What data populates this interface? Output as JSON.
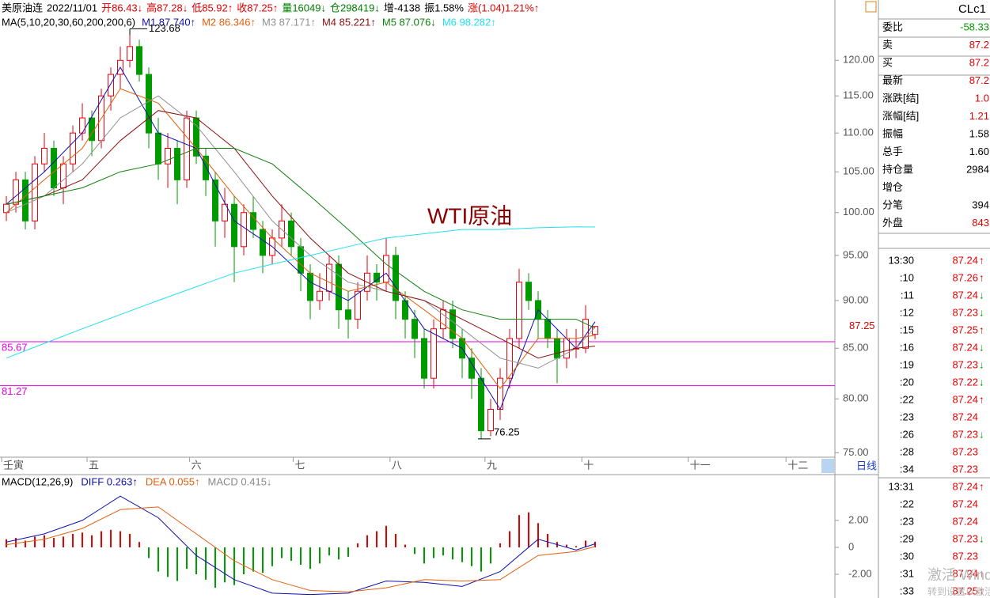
{
  "header": {
    "items": [
      {
        "text": "美原油连",
        "color": "#000000"
      },
      {
        "text": "2022/11/01",
        "color": "#000000"
      },
      {
        "text": "开86.43↓",
        "color": "#e00000"
      },
      {
        "text": "高87.28↓",
        "color": "#e00000"
      },
      {
        "text": "低85.92↑",
        "color": "#e00000"
      },
      {
        "text": "收87.25↑",
        "color": "#e00000"
      },
      {
        "text": "量16049↓",
        "color": "#008000"
      },
      {
        "text": "仓298419↓",
        "color": "#008000"
      },
      {
        "text": "增-4138",
        "color": "#000000"
      },
      {
        "text": "振1.58%",
        "color": "#000000"
      },
      {
        "text": "涨(1.04)1.21%↑",
        "color": "#e00000"
      }
    ]
  },
  "chart_data": [
    {
      "type": "candlestick",
      "ma_title": "MA(5,10,20,30,60,200,200,6)",
      "annotation": "WTI原油",
      "log_scale": true,
      "up_color": "#e8000b",
      "down_color": "#009a00",
      "xlim": [
        -0.67,
        87.25
      ],
      "xticks": [
        {
          "value": -0.5,
          "label": "壬寅"
        },
        {
          "value": 8.5,
          "label": "五"
        },
        {
          "value": 19.3,
          "label": "六"
        },
        {
          "value": 30.2,
          "label": "七"
        },
        {
          "value": 40.4,
          "label": "八"
        },
        {
          "value": 50.4,
          "label": "九"
        },
        {
          "value": 60.6,
          "label": "十"
        },
        {
          "value": 71.8,
          "label": "十一"
        },
        {
          "value": 82.1,
          "label": "十二"
        }
      ],
      "ylim": [
        74.6,
        124.2
      ],
      "yticks": [
        {
          "value": 120,
          "label": "120.00"
        },
        {
          "value": 115,
          "label": "115.00"
        },
        {
          "value": 110,
          "label": "110.00"
        },
        {
          "value": 105,
          "label": "105.00"
        },
        {
          "value": 100,
          "label": "100.00"
        },
        {
          "value": 95,
          "label": "95.00"
        },
        {
          "value": 90,
          "label": "90.00"
        },
        {
          "value": 85,
          "label": "85.00"
        },
        {
          "value": 80,
          "label": "80.00"
        },
        {
          "value": 75,
          "label": "75.00"
        }
      ],
      "hlines": [
        {
          "value": 85.67,
          "color": "#e000e0"
        },
        {
          "value": 81.27,
          "color": "#e000e0"
        }
      ],
      "candles": [
        [
          100,
          102,
          99,
          101
        ],
        [
          101,
          105,
          100,
          104
        ],
        [
          104,
          105,
          98,
          99
        ],
        [
          99,
          107,
          98,
          106
        ],
        [
          106,
          110,
          105,
          108
        ],
        [
          108,
          109,
          102,
          103
        ],
        [
          103,
          107,
          101,
          106
        ],
        [
          106,
          111,
          105,
          110
        ],
        [
          110,
          114,
          109,
          112
        ],
        [
          112,
          113,
          107,
          109
        ],
        [
          109,
          116,
          108,
          115
        ],
        [
          115,
          119,
          113,
          118
        ],
        [
          118,
          122,
          116,
          120
        ],
        [
          120,
          123.68,
          119,
          122
        ],
        [
          122,
          123,
          117,
          118
        ],
        [
          118,
          119,
          108,
          110
        ],
        [
          110,
          112,
          104,
          106
        ],
        [
          106,
          110,
          103,
          108
        ],
        [
          108,
          109,
          101,
          104
        ],
        [
          104,
          113,
          103,
          112
        ],
        [
          112,
          113,
          106,
          107
        ],
        [
          107,
          108,
          102,
          104
        ],
        [
          104,
          105,
          96,
          99
        ],
        [
          99,
          103,
          97,
          101
        ],
        [
          101,
          102,
          92,
          96
        ],
        [
          96,
          101,
          95,
          100
        ],
        [
          100,
          102,
          97,
          98
        ],
        [
          98,
          99,
          93,
          95
        ],
        [
          95,
          98,
          94,
          97
        ],
        [
          97,
          101,
          96,
          99
        ],
        [
          99,
          100,
          95,
          96
        ],
        [
          96,
          97,
          91,
          93
        ],
        [
          93,
          94,
          88,
          90
        ],
        [
          90,
          93,
          89,
          91
        ],
        [
          91,
          95,
          90,
          94
        ],
        [
          94,
          95,
          87,
          89
        ],
        [
          89,
          91,
          86,
          88
        ],
        [
          88,
          92,
          87,
          91
        ],
        [
          91,
          95,
          90,
          93
        ],
        [
          93,
          94,
          90,
          92
        ],
        [
          92,
          97,
          91,
          95
        ],
        [
          95,
          96,
          88,
          90
        ],
        [
          90,
          91,
          86,
          88
        ],
        [
          88,
          89,
          84,
          86
        ],
        [
          86,
          87,
          81,
          82
        ],
        [
          82,
          88,
          81,
          87
        ],
        [
          87,
          90,
          86,
          89
        ],
        [
          89,
          90,
          85,
          86
        ],
        [
          86,
          87,
          82,
          84
        ],
        [
          84,
          85,
          80,
          82
        ],
        [
          82,
          83,
          76.25,
          77
        ],
        [
          77,
          80,
          76.5,
          79
        ],
        [
          79,
          83,
          78,
          82
        ],
        [
          82,
          87,
          81,
          86
        ],
        [
          86,
          93.5,
          85,
          92
        ],
        [
          92,
          93,
          89,
          90
        ],
        [
          90,
          91,
          86,
          88
        ],
        [
          88,
          89,
          85,
          86
        ],
        [
          86,
          87,
          81.5,
          84
        ],
        [
          84,
          87,
          83,
          86
        ],
        [
          85,
          87,
          84,
          85
        ],
        [
          85,
          89.5,
          84.5,
          88
        ],
        [
          86.43,
          87.28,
          85.92,
          87.25
        ]
      ],
      "ma_x": [
        0,
        4,
        8,
        12,
        16,
        20,
        24,
        28,
        32,
        36,
        40,
        44,
        48,
        52,
        56,
        60,
        62
      ],
      "series": [
        {
          "name": "M1 87.740↑",
          "color": "#1010b0",
          "values": [
            101,
            105,
            110,
            119,
            110,
            108,
            99,
            96,
            92,
            90,
            93,
            87,
            85,
            79,
            89,
            85,
            87.74
          ]
        },
        {
          "name": "M2 86.346↑",
          "color": "#e06010",
          "values": [
            100,
            104,
            108,
            116,
            114,
            108,
            102,
            97,
            93,
            91,
            92,
            89,
            86,
            81,
            86,
            86,
            86.346
          ]
        },
        {
          "name": "M3 87.171↑",
          "color": "#909090",
          "values": [
            100,
            102,
            106,
            112,
            115,
            111,
            105,
            99,
            95,
            92,
            91,
            90,
            87,
            84,
            83,
            85,
            87.171
          ]
        },
        {
          "name": "M4 85.221↑",
          "color": "#8b1010",
          "values": [
            101,
            102,
            104,
            109,
            113,
            112,
            108,
            102,
            97,
            93,
            91,
            90,
            88,
            86,
            84,
            85,
            85.221
          ]
        },
        {
          "name": "M5 87.076↓",
          "color": "#108010",
          "values": [
            101,
            102,
            103,
            105,
            106,
            108,
            108,
            106,
            102,
            98,
            94,
            91,
            89,
            88,
            88,
            88,
            87.076
          ]
        },
        {
          "name": "M6 98.282↑",
          "color": "#20e0f0",
          "values": [
            84,
            85.5,
            87,
            88.5,
            90,
            91.5,
            93,
            94,
            95,
            96,
            97,
            97.5,
            98,
            98,
            98.2,
            98.3,
            98.282
          ]
        }
      ]
    },
    {
      "type": "macd",
      "title": "MACD(12,26,9)",
      "hist_name": "MACD 0.415↓",
      "up_color": "#e00000",
      "down_color": "#009a00",
      "xlim": [
        -0.67,
        87.25
      ],
      "ylim": [
        -3.76,
        5.4
      ],
      "yticks": [
        {
          "value": 2,
          "label": "2.00"
        },
        0,
        {
          "value": -2,
          "label": "-2.00"
        }
      ],
      "hist": [
        0.6,
        0.7,
        0.5,
        0.8,
        0.9,
        0.7,
        0.8,
        1.0,
        1.1,
        0.9,
        1.2,
        1.3,
        1.2,
        1.0,
        0.4,
        -0.8,
        -1.8,
        -2.2,
        -2.5,
        -1.6,
        -2.0,
        -2.4,
        -3.0,
        -2.6,
        -2.8,
        -2.0,
        -1.8,
        -1.9,
        -1.4,
        -0.8,
        -1.0,
        -1.3,
        -1.6,
        -1.2,
        -0.6,
        -0.9,
        -0.7,
        0.3,
        0.9,
        1.2,
        1.6,
        1.0,
        0.2,
        -0.5,
        -1.2,
        -0.8,
        -0.6,
        -0.9,
        -1.1,
        -1.4,
        -1.8,
        -1.2,
        0.3,
        1.2,
        2.4,
        2.6,
        1.8,
        1.0,
        0.4,
        0.2,
        0.1,
        0.5,
        0.415
      ],
      "x": [
        0,
        4,
        8,
        12,
        16,
        20,
        24,
        28,
        32,
        36,
        40,
        44,
        48,
        52,
        56,
        60,
        62
      ],
      "series": [
        {
          "name": "DIFF 0.263↑",
          "color": "#1010b0",
          "values": [
            0.4,
            1.0,
            2.0,
            3.8,
            2.2,
            -0.6,
            -2.4,
            -3.4,
            -3.5,
            -3.4,
            -2.5,
            -2.6,
            -2.9,
            -1.8,
            0.6,
            -0.2,
            0.263
          ]
        },
        {
          "name": "DEA 0.055↑",
          "color": "#e06010",
          "values": [
            0.2,
            0.6,
            1.4,
            2.8,
            3.0,
            1.0,
            -1.0,
            -2.4,
            -3.2,
            -3.3,
            -3.0,
            -2.4,
            -2.5,
            -2.4,
            -0.6,
            -0.3,
            0.055
          ]
        }
      ]
    }
  ],
  "tab": "日线",
  "quote": {
    "symbol": "CLc1",
    "rows": [
      {
        "label": "委比",
        "value": "-58.33",
        "color": "#009a00"
      },
      {
        "label": "卖",
        "value": "87.2",
        "color": "#e00000"
      },
      {
        "label": "买",
        "value": "87.2",
        "color": "#e00000"
      },
      {
        "label": "最新",
        "value": "87.2",
        "color": "#e00000"
      },
      {
        "label": "涨跌[结]",
        "value": "1.0",
        "color": "#e00000"
      },
      {
        "label": "涨幅[结]",
        "value": "1.21",
        "color": "#e00000"
      },
      {
        "label": "振幅",
        "value": "1.58",
        "color": "#000000"
      },
      {
        "label": "总手",
        "value": "1.60",
        "color": "#000000"
      },
      {
        "label": "持仓量",
        "value": "2984",
        "color": "#000000"
      },
      {
        "label": "增仓"
      },
      {
        "label": "分笔",
        "value": "394",
        "color": "#000000"
      },
      {
        "label": "外盘",
        "value": "843",
        "color": "#e00000"
      }
    ],
    "ticks": [
      [
        {
          "time": "13:30",
          "price": 87.24,
          "arrow": "↑"
        },
        {
          "time": ":10",
          "price": 87.26,
          "arrow": "↑"
        },
        {
          "time": ":11",
          "price": 87.24,
          "arrow": "↓"
        },
        {
          "time": ":12",
          "price": 87.23,
          "arrow": "↓"
        },
        {
          "time": ":15",
          "price": 87.25,
          "arrow": "↑"
        },
        {
          "time": ":16",
          "price": 87.24,
          "arrow": "↓"
        },
        {
          "time": ":19",
          "price": 87.23,
          "arrow": "↓"
        },
        {
          "time": ":20",
          "price": 87.22,
          "arrow": "↓"
        },
        {
          "time": ":22",
          "price": 87.24,
          "arrow": "↑"
        },
        {
          "time": ":23",
          "price": 87.24
        },
        {
          "time": ":26",
          "price": 87.23,
          "arrow": "↓"
        },
        {
          "time": ":28",
          "price": 87.23
        },
        {
          "time": ":34",
          "price": 87.23
        }
      ],
      [
        {
          "time": "13:31",
          "price": 87.24,
          "arrow": "↑"
        },
        {
          "time": ":22",
          "price": 87.24
        },
        {
          "time": ":23",
          "price": 87.24
        },
        {
          "time": ":29",
          "price": 87.23,
          "arrow": "↓"
        },
        {
          "time": ":30",
          "price": 87.23
        },
        {
          "time": ":31",
          "price": 87.24,
          "arrow": "↑"
        },
        {
          "time": ":33",
          "price": 87.25,
          "arrow": "↑"
        }
      ]
    ]
  },
  "watermark": [
    "激活 Windows",
    "转到设置以激活 Windows"
  ]
}
